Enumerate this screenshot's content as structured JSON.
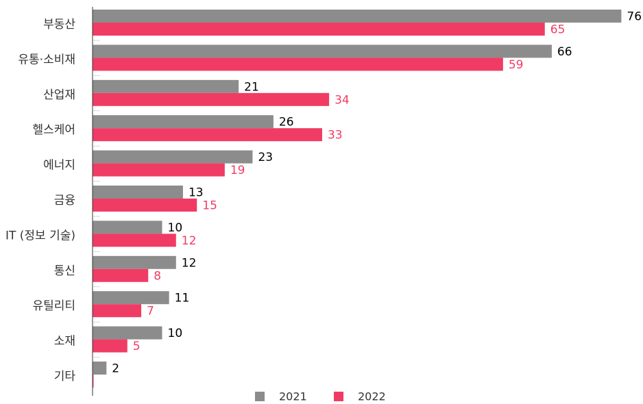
{
  "chart_data": {
    "type": "bar",
    "orientation": "horizontal",
    "title": "",
    "xlabel": "",
    "ylabel": "",
    "categories": [
      "부동산",
      "유통·소비재",
      "산업재",
      "헬스케어",
      "에너지",
      "금융",
      "IT (정보 기술)",
      "통신",
      "유틸리티",
      "소재",
      "기타"
    ],
    "series": [
      {
        "name": "2021",
        "color": "#8c8c8c",
        "label_color": "#000000",
        "values": [
          76,
          66,
          21,
          26,
          23,
          13,
          10,
          12,
          11,
          10,
          2
        ]
      },
      {
        "name": "2022",
        "color": "#f03c64",
        "label_color": "#f03c64",
        "values": [
          65,
          59,
          34,
          33,
          19,
          15,
          12,
          8,
          7,
          5,
          0
        ]
      }
    ],
    "xlim": [
      0,
      80
    ],
    "grid": false,
    "legend_position": "bottom"
  }
}
